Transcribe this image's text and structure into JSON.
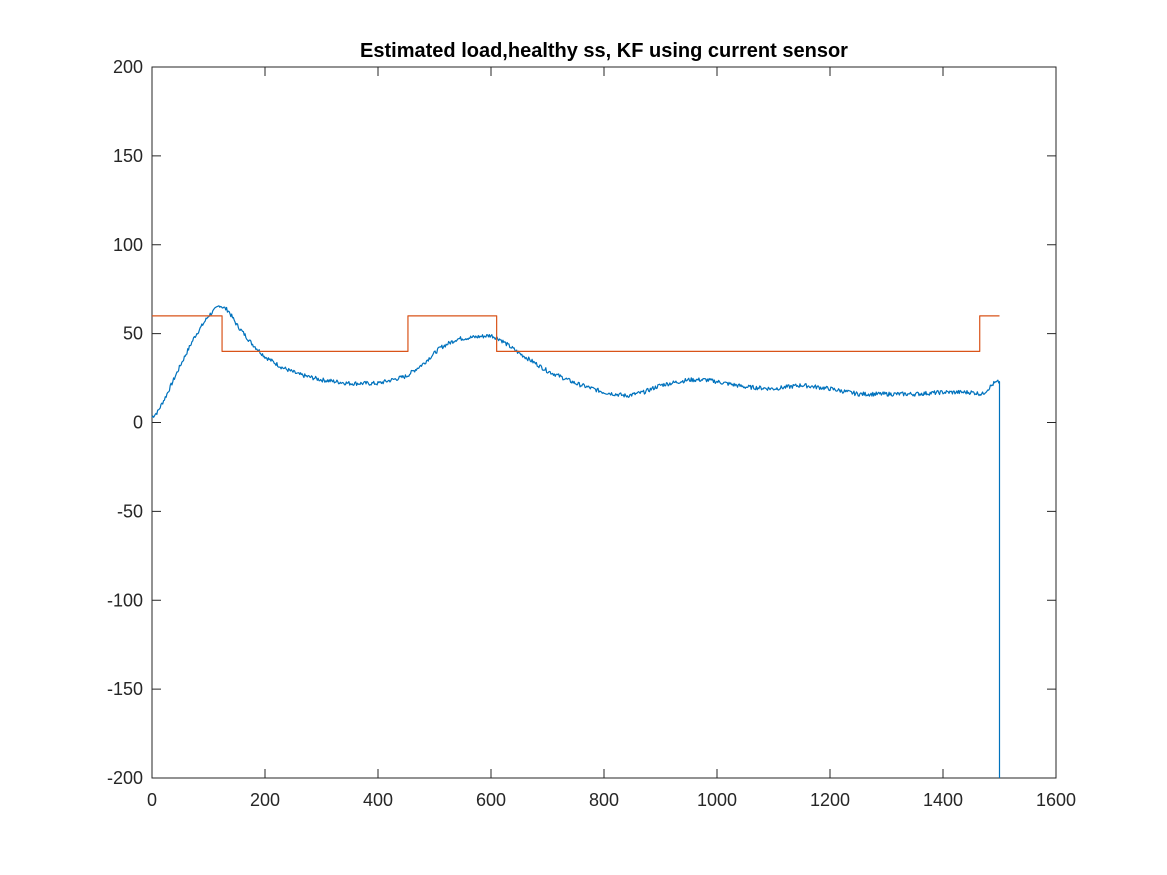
{
  "chart_data": {
    "type": "line",
    "title": "Estimated load,healthy ss, KF using current sensor",
    "xlabel": "",
    "ylabel": "",
    "xlim": [
      0,
      1600
    ],
    "ylim": [
      -200,
      200
    ],
    "xticks": [
      0,
      200,
      400,
      600,
      800,
      1000,
      1200,
      1400,
      1600
    ],
    "yticks": [
      -200,
      -150,
      -100,
      -50,
      0,
      50,
      100,
      150,
      200
    ],
    "xtick_labels": [
      "0",
      "200",
      "400",
      "600",
      "800",
      "1000",
      "1200",
      "1400",
      "1600"
    ],
    "ytick_labels": [
      "-200",
      "-150",
      "-100",
      "-50",
      "0",
      "50",
      "100",
      "150",
      "200"
    ],
    "grid": false,
    "box": true,
    "series": [
      {
        "color": "#0072BD",
        "noisy": true,
        "x": [
          0,
          10,
          25,
          50,
          75,
          100,
          120,
          135,
          150,
          175,
          200,
          230,
          260,
          300,
          350,
          400,
          450,
          480,
          510,
          540,
          570,
          600,
          615,
          650,
          700,
          750,
          800,
          840,
          870,
          900,
          950,
          980,
          1000,
          1050,
          1100,
          1150,
          1200,
          1250,
          1300,
          1350,
          1400,
          1450,
          1470,
          1490,
          1500,
          1500
        ],
        "y": [
          3,
          6,
          15,
          32,
          48,
          60,
          66,
          63,
          55,
          45,
          37,
          31,
          27,
          24,
          22,
          22,
          26,
          33,
          42,
          47,
          48,
          49,
          47,
          39,
          29,
          22,
          17,
          15,
          17,
          21,
          24,
          24,
          23,
          20,
          19,
          21,
          19,
          16,
          16,
          16,
          17,
          17,
          16,
          22,
          23,
          -200
        ]
      },
      {
        "color": "#D95319",
        "noisy": false,
        "x": [
          0,
          124,
          124,
          453,
          453,
          610,
          610,
          1465,
          1465,
          1500
        ],
        "y": [
          60,
          60,
          40,
          40,
          60,
          60,
          40,
          40,
          60,
          60
        ]
      }
    ]
  }
}
